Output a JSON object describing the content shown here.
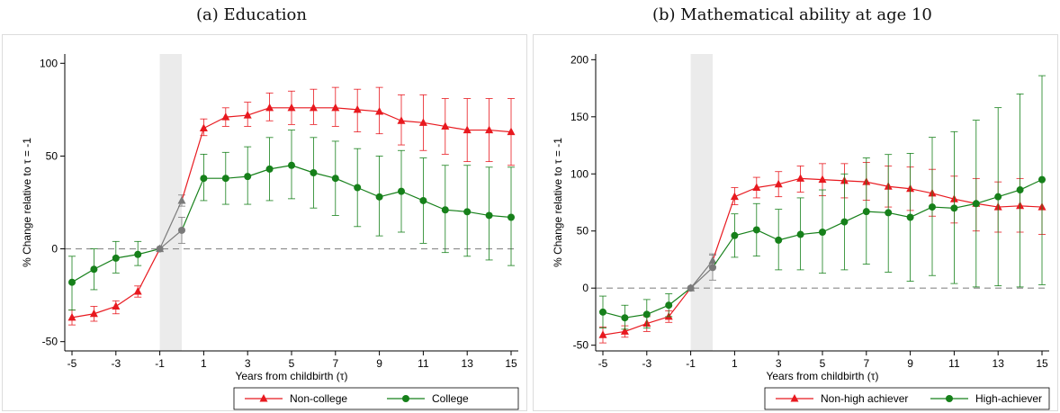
{
  "captions": [
    "(a) Education",
    "(b) Mathematical ability at age 10"
  ],
  "colors": {
    "series_a": "#e8191f",
    "series_b": "#16801a",
    "shared": "#7a7a7a",
    "shade": "#ebebeb"
  },
  "chart_data": [
    {
      "type": "line",
      "title": "",
      "xlabel": "Years from childbirth (τ)",
      "ylabel": "% Change relative to τ = -1",
      "xlim": [
        -5,
        15
      ],
      "ylim": [
        -55,
        105
      ],
      "xticks": [
        -5,
        -3,
        -1,
        1,
        3,
        5,
        7,
        9,
        11,
        13,
        15
      ],
      "yticks": [
        -50,
        0,
        50,
        100
      ],
      "shaded_x": [
        -1,
        0
      ],
      "reference_line_y": 0,
      "legend_position": "bottom-right",
      "x": [
        -5,
        -4,
        -3,
        -2,
        -1,
        0,
        1,
        2,
        3,
        4,
        5,
        6,
        7,
        8,
        9,
        10,
        11,
        12,
        13,
        14,
        15
      ],
      "series": [
        {
          "name": "Non-college",
          "marker": "triangle",
          "values": [
            -37,
            -35,
            -31,
            -23,
            0,
            26,
            65,
            71,
            72,
            76,
            76,
            76,
            76,
            75,
            74,
            69,
            68,
            66,
            64,
            64,
            63
          ],
          "ci_low": [
            -41,
            -39,
            -35,
            -26,
            0,
            23,
            61,
            66,
            66,
            69,
            67,
            67,
            66,
            63,
            62,
            56,
            53,
            51,
            47,
            47,
            45
          ],
          "ci_high": [
            -33,
            -31,
            -28,
            -20,
            0,
            29,
            70,
            76,
            79,
            84,
            85,
            86,
            87,
            86,
            87,
            83,
            83,
            81,
            81,
            81,
            81
          ]
        },
        {
          "name": "College",
          "marker": "circle",
          "values": [
            -18,
            -11,
            -5,
            -3,
            0,
            10,
            38,
            38,
            39,
            43,
            45,
            41,
            38,
            33,
            28,
            31,
            26,
            21,
            20,
            18,
            17
          ],
          "ci_low": [
            -33,
            -22,
            -13,
            -9,
            0,
            3,
            26,
            24,
            24,
            26,
            27,
            22,
            18,
            12,
            7,
            9,
            3,
            -2,
            -4,
            -6,
            -9
          ],
          "ci_high": [
            -4,
            0,
            4,
            4,
            0,
            17,
            51,
            52,
            55,
            60,
            64,
            60,
            58,
            54,
            50,
            53,
            49,
            45,
            45,
            44,
            44
          ]
        }
      ]
    },
    {
      "type": "line",
      "title": "",
      "xlabel": "Years from childbirth (τ)",
      "ylabel": "% Change relative to τ = -1",
      "xlim": [
        -5,
        15
      ],
      "ylim": [
        -55,
        205
      ],
      "xticks": [
        -5,
        -3,
        -1,
        1,
        3,
        5,
        7,
        9,
        11,
        13,
        15
      ],
      "yticks": [
        -50,
        0,
        50,
        100,
        150,
        200
      ],
      "shaded_x": [
        -1,
        0
      ],
      "reference_line_y": 0,
      "legend_position": "bottom-right",
      "x": [
        -5,
        -4,
        -3,
        -2,
        -1,
        0,
        1,
        2,
        3,
        4,
        5,
        6,
        7,
        8,
        9,
        10,
        11,
        12,
        13,
        14,
        15
      ],
      "series": [
        {
          "name": "Non-high achiever",
          "marker": "triangle",
          "values": [
            -41,
            -38,
            -31,
            -25,
            0,
            24,
            80,
            88,
            91,
            96,
            95,
            94,
            93,
            89,
            87,
            83,
            78,
            74,
            71,
            72,
            71
          ],
          "ci_low": [
            -48,
            -43,
            -38,
            -30,
            0,
            19,
            73,
            79,
            80,
            84,
            81,
            79,
            77,
            71,
            68,
            63,
            57,
            50,
            49,
            49,
            47
          ],
          "ci_high": [
            -34,
            -33,
            -25,
            -20,
            0,
            30,
            88,
            97,
            102,
            107,
            109,
            109,
            110,
            107,
            106,
            104,
            98,
            96,
            93,
            96,
            95
          ]
        },
        {
          "name": "High-achiever",
          "marker": "circle",
          "values": [
            -21,
            -26,
            -23,
            -15,
            0,
            18,
            46,
            51,
            42,
            47,
            49,
            58,
            67,
            66,
            62,
            71,
            70,
            74,
            80,
            86,
            95
          ],
          "ci_low": [
            -35,
            -36,
            -35,
            -25,
            0,
            7,
            27,
            28,
            16,
            16,
            13,
            16,
            21,
            14,
            6,
            11,
            4,
            1,
            2,
            1,
            3
          ],
          "ci_high": [
            -7,
            -15,
            -10,
            -5,
            0,
            29,
            65,
            74,
            69,
            79,
            86,
            100,
            114,
            117,
            118,
            132,
            137,
            147,
            158,
            170,
            186
          ]
        }
      ]
    }
  ]
}
